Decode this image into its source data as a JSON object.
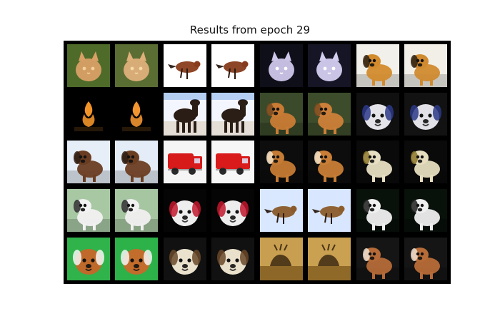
{
  "figure": {
    "title": "Results from epoch 29"
  },
  "grid": {
    "rows": 5,
    "cols": 8,
    "cells": [
      {
        "id": "r1c1",
        "icon": "cat-image",
        "colors": [
          "#4f6b2a",
          "#d9a066",
          "#f3cf9a"
        ]
      },
      {
        "id": "r1c2",
        "icon": "cat-image",
        "colors": [
          "#5a6d33",
          "#dfb07a",
          "#f7d9a8"
        ]
      },
      {
        "id": "r1c3",
        "icon": "bird-image",
        "colors": [
          "#ffffff",
          "#8a3d1c",
          "#2b1a12"
        ]
      },
      {
        "id": "r1c4",
        "icon": "bird-image",
        "colors": [
          "#ffffff",
          "#873b1c",
          "#2a1911"
        ]
      },
      {
        "id": "r1c5",
        "icon": "cat-image",
        "colors": [
          "#0f0f1a",
          "#cfc7ea",
          "#ffffff"
        ]
      },
      {
        "id": "r1c6",
        "icon": "cat-image",
        "colors": [
          "#151525",
          "#d4cff0",
          "#ffffff"
        ]
      },
      {
        "id": "r1c7",
        "icon": "dog-image",
        "colors": [
          "#f2f0ea",
          "#d28b2d",
          "#2b1f14"
        ]
      },
      {
        "id": "r1c8",
        "icon": "dog-image",
        "colors": [
          "#f2efe8",
          "#d08a2f",
          "#2a1e13"
        ]
      },
      {
        "id": "r2c1",
        "icon": "fire-image",
        "colors": [
          "#000000",
          "#ff9b2b",
          "#2a1a08"
        ]
      },
      {
        "id": "r2c2",
        "icon": "fire-image",
        "colors": [
          "#000000",
          "#ff9c33",
          "#2a1a08"
        ]
      },
      {
        "id": "r2c3",
        "icon": "horse-image",
        "colors": [
          "#f4f6ff",
          "#2a1d16",
          "#3b84d9"
        ]
      },
      {
        "id": "r2c4",
        "icon": "horse-image",
        "colors": [
          "#f4f6ff",
          "#2b1e17",
          "#3c86dc"
        ]
      },
      {
        "id": "r2c5",
        "icon": "dog-image",
        "colors": [
          "#3a4a2a",
          "#c97b34",
          "#7a4a20"
        ]
      },
      {
        "id": "r2c6",
        "icon": "dog-image",
        "colors": [
          "#3d4d2b",
          "#cc7f38",
          "#7c4b21"
        ]
      },
      {
        "id": "r2c7",
        "icon": "dog-face-image",
        "colors": [
          "#101010",
          "#e8e8ee",
          "#2d3a8a"
        ]
      },
      {
        "id": "r2c8",
        "icon": "dog-face-image",
        "colors": [
          "#121212",
          "#e6e6ec",
          "#2c3987"
        ]
      },
      {
        "id": "r3c1",
        "icon": "dog-image",
        "colors": [
          "#e6eef8",
          "#6a3d22",
          "#2f1e14"
        ]
      },
      {
        "id": "r3c2",
        "icon": "dog-image",
        "colors": [
          "#e4edf7",
          "#6b3e22",
          "#2e1d13"
        ]
      },
      {
        "id": "r3c3",
        "icon": "truck-image",
        "colors": [
          "#f5f5f5",
          "#d71a1a",
          "#2b2b2b"
        ]
      },
      {
        "id": "r3c4",
        "icon": "truck-image",
        "colors": [
          "#f6f6f6",
          "#d91b1b",
          "#2a2a2a"
        ]
      },
      {
        "id": "r3c5",
        "icon": "dog-image",
        "colors": [
          "#0d0d0d",
          "#c57b33",
          "#f4e3c8"
        ]
      },
      {
        "id": "r3c6",
        "icon": "dog-image",
        "colors": [
          "#0d0d0d",
          "#c87e36",
          "#f3e1c5"
        ]
      },
      {
        "id": "r3c7",
        "icon": "dog-image",
        "colors": [
          "#0a0a0a",
          "#e7dfc3",
          "#8f7a2e"
        ]
      },
      {
        "id": "r3c8",
        "icon": "dog-image",
        "colors": [
          "#0a0a0a",
          "#e6ddbf",
          "#8d772c"
        ]
      },
      {
        "id": "r4c1",
        "icon": "dog-image",
        "colors": [
          "#a8c8a4",
          "#f2f2f2",
          "#2a2a2a"
        ]
      },
      {
        "id": "r4c2",
        "icon": "dog-image",
        "colors": [
          "#a6c6a2",
          "#f0f0f0",
          "#292929"
        ]
      },
      {
        "id": "r4c3",
        "icon": "dog-face-image",
        "colors": [
          "#050505",
          "#f3f3f3",
          "#c2182e"
        ]
      },
      {
        "id": "r4c4",
        "icon": "dog-face-image",
        "colors": [
          "#050505",
          "#f2f2f2",
          "#c1172d"
        ]
      },
      {
        "id": "r4c5",
        "icon": "bird-image",
        "colors": [
          "#d9e8ff",
          "#8a5a2a",
          "#2a1a10"
        ]
      },
      {
        "id": "r4c6",
        "icon": "bird-image",
        "colors": [
          "#d8e7ff",
          "#8c5c2b",
          "#2b1b11"
        ]
      },
      {
        "id": "r4c7",
        "icon": "dog-image",
        "colors": [
          "#08110a",
          "#f0f0f0",
          "#1f1f1f"
        ]
      },
      {
        "id": "r4c8",
        "icon": "dog-image",
        "colors": [
          "#08110a",
          "#eeeeee",
          "#1e1e1e"
        ]
      },
      {
        "id": "r5c1",
        "icon": "dog-face-image",
        "colors": [
          "#2fb34a",
          "#c2682a",
          "#f6f6f6"
        ]
      },
      {
        "id": "r5c2",
        "icon": "dog-face-image",
        "colors": [
          "#2db149",
          "#c56b2c",
          "#f6f6f6"
        ]
      },
      {
        "id": "r5c3",
        "icon": "dog-face-image",
        "colors": [
          "#111111",
          "#f0e7d2",
          "#6b4a2a"
        ]
      },
      {
        "id": "r5c4",
        "icon": "dog-face-image",
        "colors": [
          "#111111",
          "#efe6d0",
          "#6a4829"
        ]
      },
      {
        "id": "r5c5",
        "icon": "deer-image",
        "colors": [
          "#6d4a12",
          "#f0c36b",
          "#2a1a08"
        ]
      },
      {
        "id": "r5c6",
        "icon": "deer-image",
        "colors": [
          "#6e4b13",
          "#f1c46c",
          "#2b1b09"
        ]
      },
      {
        "id": "r5c7",
        "icon": "dog-image",
        "colors": [
          "#151515",
          "#b56a37",
          "#eee2d2"
        ]
      },
      {
        "id": "r5c8",
        "icon": "dog-image",
        "colors": [
          "#151515",
          "#b76c38",
          "#ede1d1"
        ]
      }
    ]
  }
}
